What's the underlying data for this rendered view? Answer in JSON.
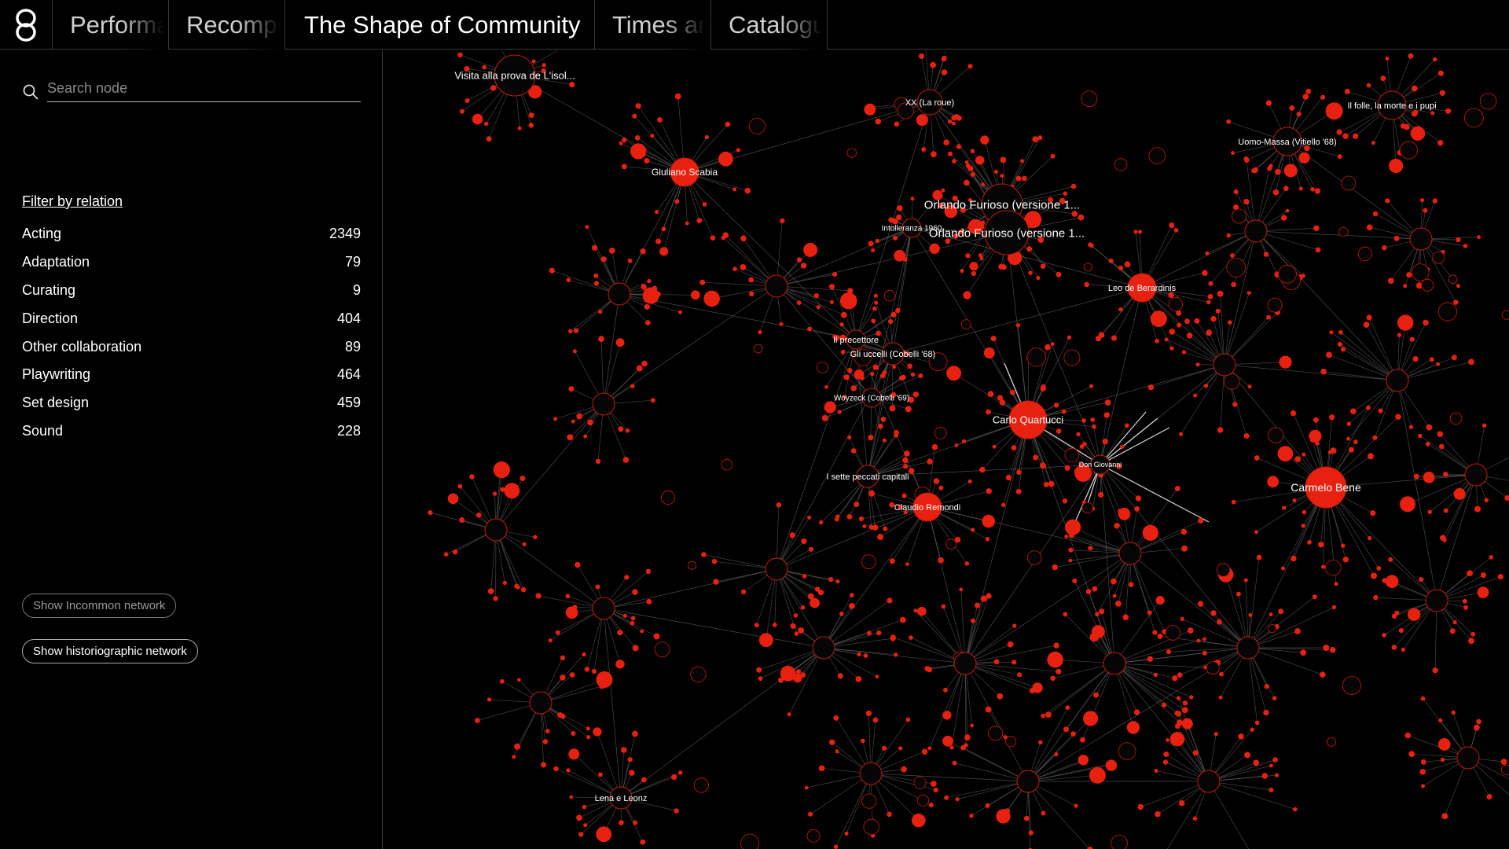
{
  "nav": {
    "tabs": [
      {
        "label": "Performances",
        "active": false
      },
      {
        "label": "Recompositions",
        "active": false
      },
      {
        "label": "The Shape of Community",
        "active": true
      },
      {
        "label": "Times and Spaces",
        "active": false
      },
      {
        "label": "Catalogue",
        "active": false
      }
    ],
    "logo_icon": "infinity-loop-logo"
  },
  "search": {
    "placeholder": "Search node",
    "value": ""
  },
  "filter": {
    "title": "Filter by relation",
    "relations": [
      {
        "label": "Acting",
        "count": "2349"
      },
      {
        "label": "Adaptation",
        "count": "79"
      },
      {
        "label": "Curating",
        "count": "9"
      },
      {
        "label": "Direction",
        "count": "404"
      },
      {
        "label": "Other collaboration",
        "count": "89"
      },
      {
        "label": "Playwriting",
        "count": "464"
      },
      {
        "label": "Set design",
        "count": "459"
      },
      {
        "label": "Sound",
        "count": "228"
      }
    ]
  },
  "buttons": {
    "incommon": "Show Incommon network",
    "historiographic": "Show historiographic network"
  },
  "colors": {
    "node": "#e8200f",
    "edge": "#7a7a7a",
    "background": "#000000"
  },
  "graph": {
    "labels": [
      {
        "text": "Visita alla prova de L'isol..."
      },
      {
        "text": "XX (La roue)"
      },
      {
        "text": "Il folle, la morte e i pupi"
      },
      {
        "text": "Uomo-Massa (Vitiello '68)"
      },
      {
        "text": "Giuliano Scabia"
      },
      {
        "text": "Orlando Furioso (versione 1..."
      },
      {
        "text": "Intolleranza 1960"
      },
      {
        "text": "Orlando Furioso (versione 1..."
      },
      {
        "text": "Leo de Berardinis"
      },
      {
        "text": "Il precettore"
      },
      {
        "text": "Gli uccelli (Cobelli '68)"
      },
      {
        "text": "Woyzeck (Cobelli '69)"
      },
      {
        "text": "Carlo Quartucci"
      },
      {
        "text": "Don Giovanni"
      },
      {
        "text": "Carmelo Bene"
      },
      {
        "text": "I sette peccati capitali"
      },
      {
        "text": "Claudio Remondi"
      },
      {
        "text": "Lena e Leonz"
      }
    ]
  }
}
